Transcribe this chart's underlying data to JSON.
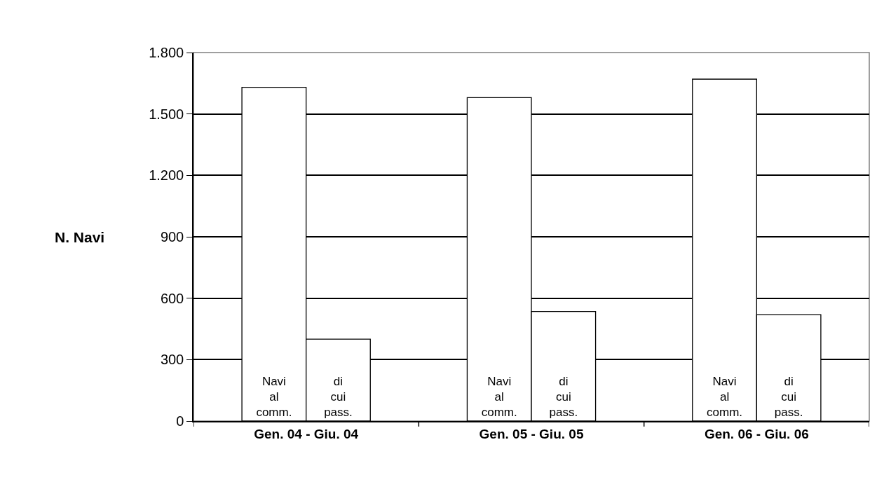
{
  "chart_data": {
    "type": "bar",
    "ylabel": "N. Navi",
    "categories": [
      "Gen. 04 - Giu. 04",
      "Gen. 05 - Giu. 05",
      "Gen. 06 - Giu. 06"
    ],
    "series": [
      {
        "name": "Navi al comm.",
        "color": "#ffffff",
        "values": [
          1630,
          1580,
          1670
        ]
      },
      {
        "name": "di cui pass.",
        "color": "#ffffff",
        "values": [
          400,
          535,
          520
        ]
      }
    ],
    "ylim": [
      0,
      1800
    ],
    "yticks": [
      0,
      {
        "value": 300,
        "label": "300"
      },
      {
        "value": 600,
        "label": "600"
      },
      {
        "value": 900,
        "label": "900"
      },
      {
        "value": 1200,
        "label": "1.200"
      },
      {
        "value": 1500,
        "label": "1.500"
      },
      {
        "value": 1800,
        "label": "1.800"
      }
    ],
    "grid": "y",
    "legend": false
  }
}
